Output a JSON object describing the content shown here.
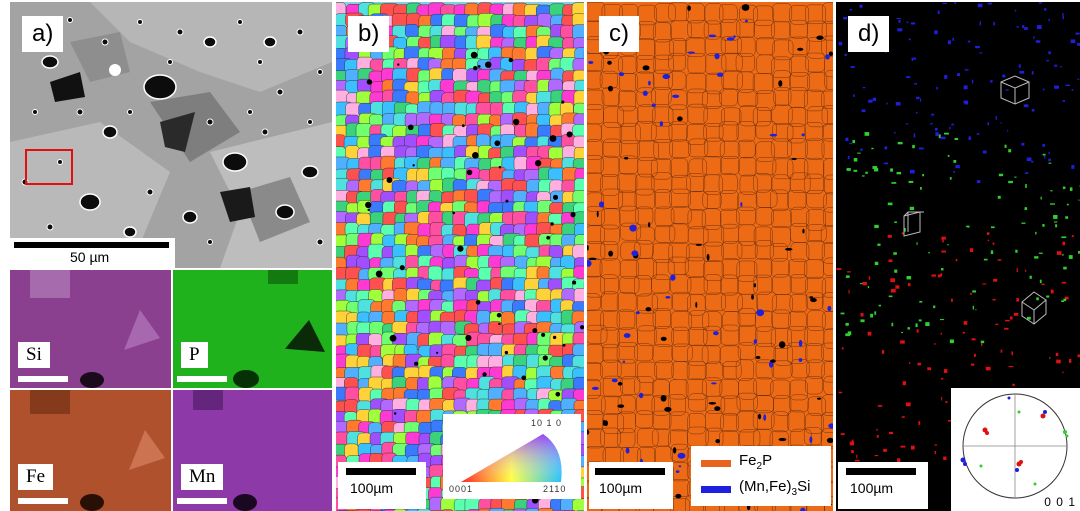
{
  "panels": {
    "a": {
      "tag": "a)",
      "scale_label": "50 µm",
      "maps": [
        {
          "element": "Si",
          "color": "#8a3f8f"
        },
        {
          "element": "P",
          "color": "#1fb21c"
        },
        {
          "element": "Fe",
          "color": "#b0512e"
        },
        {
          "element": "Mn",
          "color": "#8d3aa8"
        }
      ]
    },
    "b": {
      "tag": "b)",
      "scale_label": "100µm",
      "ipf_key": {
        "top": "10 1 0",
        "left": "0001",
        "right": "2110"
      }
    },
    "c": {
      "tag": "c)",
      "scale_label": "100µm",
      "legend": [
        {
          "main": "Fe",
          "sub": "2",
          "after": "P",
          "color": "#e8641e"
        },
        {
          "main": "(Mn,Fe)",
          "sub": "3",
          "after": "Si",
          "color": "#1f1fe0"
        }
      ]
    },
    "d": {
      "tag": "d)",
      "scale_label": "100µm",
      "pole_label": "0 0 1"
    }
  }
}
